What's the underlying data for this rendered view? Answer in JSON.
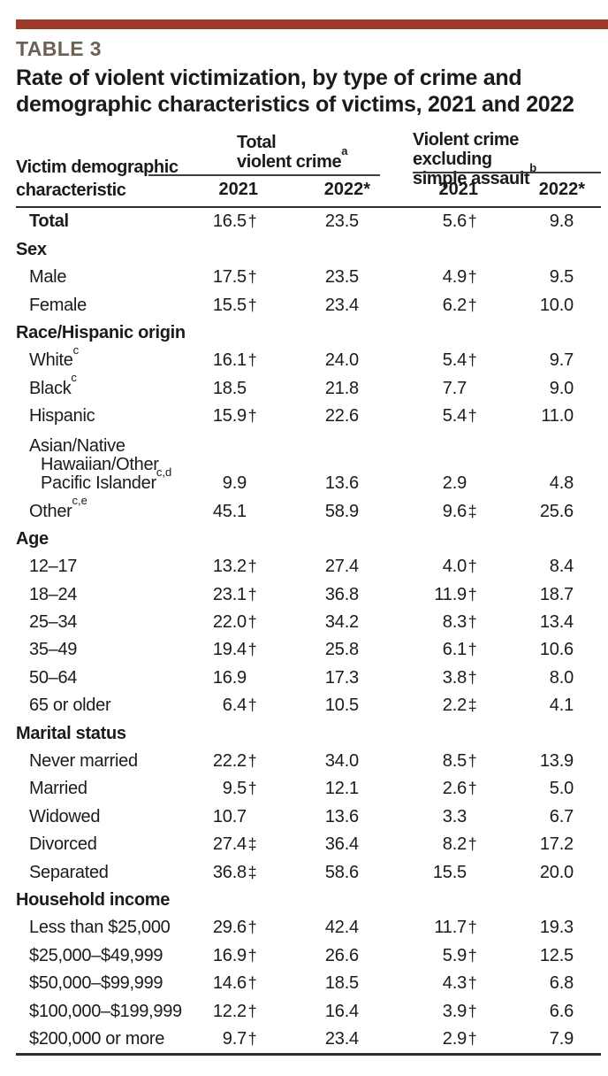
{
  "page": {
    "table_label": "TABLE 3",
    "title": "Rate of violent victimization, by type of crime and demographic characteristics of victims, 2021 and 2022"
  },
  "colors": {
    "accent_bar": "#9d3b2a",
    "table_label_text": "#6d6054",
    "body_text": "#1b1b1b",
    "rule": "#2d2d2d"
  },
  "table": {
    "header": {
      "stub_line1": "Victim demographic",
      "stub_line2": "characteristic",
      "group_a": {
        "line1": "Total",
        "line2": "violent crime",
        "sup": "a"
      },
      "group_b": {
        "line1": "Violent crime excluding",
        "line2": "simple assault",
        "sup": "b"
      },
      "years": [
        "2021",
        "2022*"
      ]
    },
    "footnote_markers": {
      "dagger": "†",
      "double_dagger": "‡"
    },
    "rows": [
      {
        "type": "data",
        "bold": true,
        "label": "Total",
        "values": [
          {
            "v": "16.5",
            "m": "†"
          },
          {
            "v": "23.5",
            "m": ""
          },
          {
            "v": "5.6",
            "m": "†"
          },
          {
            "v": "9.8",
            "m": ""
          }
        ]
      },
      {
        "type": "section",
        "label": "Sex"
      },
      {
        "type": "data",
        "label": "Male",
        "values": [
          {
            "v": "17.5",
            "m": "†"
          },
          {
            "v": "23.5",
            "m": ""
          },
          {
            "v": "4.9",
            "m": "†"
          },
          {
            "v": "9.5",
            "m": ""
          }
        ]
      },
      {
        "type": "data",
        "label": "Female",
        "values": [
          {
            "v": "15.5",
            "m": "†"
          },
          {
            "v": "23.4",
            "m": ""
          },
          {
            "v": "6.2",
            "m": "†"
          },
          {
            "v": "10.0",
            "m": ""
          }
        ]
      },
      {
        "type": "section",
        "label": "Race/Hispanic origin"
      },
      {
        "type": "data",
        "label": "White",
        "sup": "c",
        "values": [
          {
            "v": "16.1",
            "m": "†"
          },
          {
            "v": "24.0",
            "m": ""
          },
          {
            "v": "5.4",
            "m": "†"
          },
          {
            "v": "9.7",
            "m": ""
          }
        ]
      },
      {
        "type": "data",
        "label": "Black",
        "sup": "c",
        "values": [
          {
            "v": "18.5",
            "m": ""
          },
          {
            "v": "21.8",
            "m": ""
          },
          {
            "v": "7.7",
            "m": ""
          },
          {
            "v": "9.0",
            "m": ""
          }
        ]
      },
      {
        "type": "data",
        "label": "Hispanic",
        "values": [
          {
            "v": "15.9",
            "m": "†"
          },
          {
            "v": "22.6",
            "m": ""
          },
          {
            "v": "5.4",
            "m": "†"
          },
          {
            "v": "11.0",
            "m": ""
          }
        ]
      },
      {
        "type": "data",
        "lines": [
          "Asian/Native",
          "Hawaiian/Other",
          "Pacific Islander"
        ],
        "sup": "c,d",
        "values": [
          {
            "v": "9.9",
            "m": ""
          },
          {
            "v": "13.6",
            "m": ""
          },
          {
            "v": "2.9",
            "m": ""
          },
          {
            "v": "4.8",
            "m": ""
          }
        ]
      },
      {
        "type": "data",
        "label": "Other",
        "sup": "c,e",
        "values": [
          {
            "v": "45.1",
            "m": ""
          },
          {
            "v": "58.9",
            "m": ""
          },
          {
            "v": "9.6",
            "m": "‡"
          },
          {
            "v": "25.6",
            "m": ""
          }
        ]
      },
      {
        "type": "section",
        "label": "Age"
      },
      {
        "type": "data",
        "label": "12–17",
        "values": [
          {
            "v": "13.2",
            "m": "†"
          },
          {
            "v": "27.4",
            "m": ""
          },
          {
            "v": "4.0",
            "m": "†"
          },
          {
            "v": "8.4",
            "m": ""
          }
        ]
      },
      {
        "type": "data",
        "label": "18–24",
        "values": [
          {
            "v": "23.1",
            "m": "†"
          },
          {
            "v": "36.8",
            "m": ""
          },
          {
            "v": "11.9",
            "m": "†"
          },
          {
            "v": "18.7",
            "m": ""
          }
        ]
      },
      {
        "type": "data",
        "label": "25–34",
        "values": [
          {
            "v": "22.0",
            "m": "†"
          },
          {
            "v": "34.2",
            "m": ""
          },
          {
            "v": "8.3",
            "m": "†"
          },
          {
            "v": "13.4",
            "m": ""
          }
        ]
      },
      {
        "type": "data",
        "label": "35–49",
        "values": [
          {
            "v": "19.4",
            "m": "†"
          },
          {
            "v": "25.8",
            "m": ""
          },
          {
            "v": "6.1",
            "m": "†"
          },
          {
            "v": "10.6",
            "m": ""
          }
        ]
      },
      {
        "type": "data",
        "label": "50–64",
        "values": [
          {
            "v": "16.9",
            "m": ""
          },
          {
            "v": "17.3",
            "m": ""
          },
          {
            "v": "3.8",
            "m": "†"
          },
          {
            "v": "8.0",
            "m": ""
          }
        ]
      },
      {
        "type": "data",
        "label": "65 or older",
        "values": [
          {
            "v": "6.4",
            "m": "†"
          },
          {
            "v": "10.5",
            "m": ""
          },
          {
            "v": "2.2",
            "m": "‡"
          },
          {
            "v": "4.1",
            "m": ""
          }
        ]
      },
      {
        "type": "section",
        "label": "Marital status"
      },
      {
        "type": "data",
        "label": "Never married",
        "values": [
          {
            "v": "22.2",
            "m": "†"
          },
          {
            "v": "34.0",
            "m": ""
          },
          {
            "v": "8.5",
            "m": "†"
          },
          {
            "v": "13.9",
            "m": ""
          }
        ]
      },
      {
        "type": "data",
        "label": "Married",
        "values": [
          {
            "v": "9.5",
            "m": "†"
          },
          {
            "v": "12.1",
            "m": ""
          },
          {
            "v": "2.6",
            "m": "†"
          },
          {
            "v": "5.0",
            "m": ""
          }
        ]
      },
      {
        "type": "data",
        "label": "Widowed",
        "values": [
          {
            "v": "10.7",
            "m": ""
          },
          {
            "v": "13.6",
            "m": ""
          },
          {
            "v": "3.3",
            "m": ""
          },
          {
            "v": "6.7",
            "m": ""
          }
        ]
      },
      {
        "type": "data",
        "label": "Divorced",
        "values": [
          {
            "v": "27.4",
            "m": "‡"
          },
          {
            "v": "36.4",
            "m": ""
          },
          {
            "v": "8.2",
            "m": "†"
          },
          {
            "v": "17.2",
            "m": ""
          }
        ]
      },
      {
        "type": "data",
        "label": "Separated",
        "values": [
          {
            "v": "36.8",
            "m": "‡"
          },
          {
            "v": "58.6",
            "m": ""
          },
          {
            "v": "15.5",
            "m": ""
          },
          {
            "v": "20.0",
            "m": ""
          }
        ]
      },
      {
        "type": "section",
        "label": "Household income"
      },
      {
        "type": "data",
        "label": "Less than $25,000",
        "values": [
          {
            "v": "29.6",
            "m": "†"
          },
          {
            "v": "42.4",
            "m": ""
          },
          {
            "v": "11.7",
            "m": "†"
          },
          {
            "v": "19.3",
            "m": ""
          }
        ]
      },
      {
        "type": "data",
        "label": "$25,000–$49,999",
        "values": [
          {
            "v": "16.9",
            "m": "†"
          },
          {
            "v": "26.6",
            "m": ""
          },
          {
            "v": "5.9",
            "m": "†"
          },
          {
            "v": "12.5",
            "m": ""
          }
        ]
      },
      {
        "type": "data",
        "label": "$50,000–$99,999",
        "values": [
          {
            "v": "14.6",
            "m": "†"
          },
          {
            "v": "18.5",
            "m": ""
          },
          {
            "v": "4.3",
            "m": "†"
          },
          {
            "v": "6.8",
            "m": ""
          }
        ]
      },
      {
        "type": "data",
        "label": "$100,000–$199,999",
        "values": [
          {
            "v": "12.2",
            "m": "†"
          },
          {
            "v": "16.4",
            "m": ""
          },
          {
            "v": "3.9",
            "m": "†"
          },
          {
            "v": "6.6",
            "m": ""
          }
        ]
      },
      {
        "type": "data",
        "label": "$200,000 or more",
        "values": [
          {
            "v": "9.7",
            "m": "†"
          },
          {
            "v": "23.4",
            "m": ""
          },
          {
            "v": "2.9",
            "m": "†"
          },
          {
            "v": "7.9",
            "m": ""
          }
        ]
      }
    ]
  }
}
